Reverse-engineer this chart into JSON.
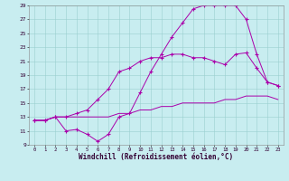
{
  "xlabel": "Windchill (Refroidissement éolien,°C)",
  "bg_color": "#c8edf0",
  "grid_color": "#9acfcf",
  "line_color": "#aa00aa",
  "xmin": 0,
  "xmax": 23,
  "ymin": 9,
  "ymax": 29,
  "yticks": [
    9,
    11,
    13,
    15,
    17,
    19,
    21,
    23,
    25,
    27,
    29
  ],
  "xticks": [
    0,
    1,
    2,
    3,
    4,
    5,
    6,
    7,
    8,
    9,
    10,
    11,
    12,
    13,
    14,
    15,
    16,
    17,
    18,
    19,
    20,
    21,
    22,
    23
  ],
  "curve1_x": [
    0,
    1,
    2,
    3,
    4,
    5,
    6,
    7,
    8,
    9,
    10,
    11,
    12,
    13,
    14,
    15,
    16,
    17,
    18,
    19,
    20,
    21,
    22,
    23
  ],
  "curve1_y": [
    12.5,
    12.5,
    13.0,
    11.0,
    11.2,
    10.5,
    9.5,
    10.5,
    13.0,
    13.5,
    16.5,
    19.5,
    22.0,
    24.5,
    26.5,
    28.5,
    29.0,
    29.0,
    29.0,
    29.0,
    27.0,
    22.0,
    18.0,
    17.5
  ],
  "curve2_x": [
    0,
    1,
    2,
    3,
    4,
    5,
    6,
    7,
    8,
    9,
    10,
    11,
    12,
    13,
    14,
    15,
    16,
    17,
    18,
    19,
    20,
    21,
    22,
    23
  ],
  "curve2_y": [
    12.5,
    12.5,
    13.0,
    13.0,
    13.5,
    14.0,
    15.5,
    17.0,
    19.5,
    20.0,
    21.0,
    21.5,
    21.5,
    22.0,
    22.0,
    21.5,
    21.5,
    21.0,
    20.5,
    22.0,
    22.2,
    20.0,
    18.0,
    17.5
  ],
  "curve3_x": [
    0,
    1,
    2,
    3,
    4,
    5,
    6,
    7,
    8,
    9,
    10,
    11,
    12,
    13,
    14,
    15,
    16,
    17,
    18,
    19,
    20,
    21,
    22,
    23
  ],
  "curve3_y": [
    12.5,
    12.5,
    13.0,
    13.0,
    13.0,
    13.0,
    13.0,
    13.0,
    13.5,
    13.5,
    14.0,
    14.0,
    14.5,
    14.5,
    15.0,
    15.0,
    15.0,
    15.0,
    15.5,
    15.5,
    16.0,
    16.0,
    16.0,
    15.5
  ]
}
